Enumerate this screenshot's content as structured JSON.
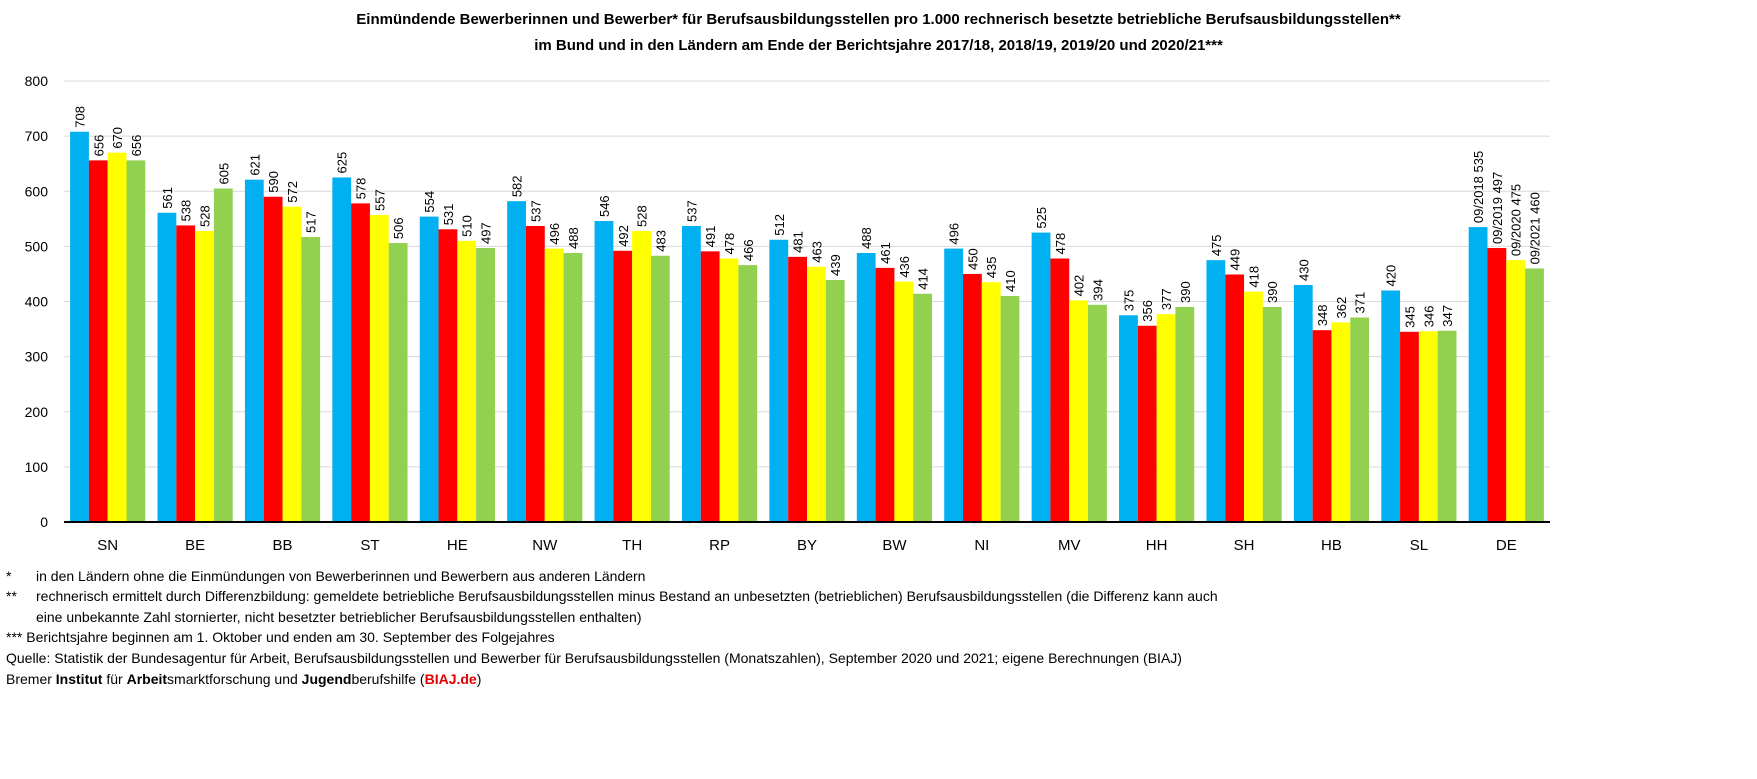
{
  "title_line1": "Einmündende Bewerberinnen und Bewerber* für Berufsausbildungsstellen pro 1.000 rechnerisch besetzte betriebliche Berufsausbildungsstellen**",
  "title_line2": "im Bund und in den Ländern am Ende der Berichtsjahre 2017/18, 2018/19, 2019/20 und 2020/21***",
  "chart_data": {
    "type": "bar",
    "categories": [
      "SN",
      "BE",
      "BB",
      "ST",
      "HE",
      "NW",
      "TH",
      "RP",
      "BY",
      "BW",
      "NI",
      "MV",
      "HH",
      "SH",
      "HB",
      "SL",
      "DE"
    ],
    "series": [
      {
        "name": "09/2018",
        "color": "#00b0f0",
        "values": [
          708,
          561,
          621,
          625,
          554,
          582,
          546,
          537,
          512,
          488,
          496,
          525,
          375,
          475,
          430,
          420,
          535
        ]
      },
      {
        "name": "09/2019",
        "color": "#ff0000",
        "values": [
          656,
          538,
          590,
          578,
          531,
          537,
          492,
          491,
          481,
          461,
          450,
          478,
          356,
          449,
          348,
          345,
          497
        ]
      },
      {
        "name": "09/2020",
        "color": "#ffff00",
        "values": [
          670,
          528,
          572,
          557,
          510,
          496,
          528,
          478,
          463,
          436,
          435,
          402,
          377,
          418,
          362,
          346,
          475
        ]
      },
      {
        "name": "09/2021",
        "color": "#92d050",
        "values": [
          656,
          605,
          517,
          506,
          497,
          488,
          483,
          466,
          439,
          414,
          410,
          394,
          390,
          390,
          371,
          347,
          460
        ]
      }
    ],
    "labelled_category": "DE",
    "yticks": [
      0,
      100,
      200,
      300,
      400,
      500,
      600,
      700,
      800
    ],
    "ylim": [
      0,
      800
    ],
    "grid": true,
    "xlabel": "",
    "ylabel": ""
  },
  "footnotes": {
    "f1_marker": "*",
    "f1_text": "in den Ländern ohne die Einmündungen von Bewerberinnen und Bewerbern aus anderen Ländern",
    "f2_marker": "**",
    "f2_text": "rechnerisch ermittelt durch Differenzbildung: gemeldete betriebliche Berufsausbildungsstellen minus Bestand an unbesetzten (betrieblichen) Berufsausbildungsstellen (die Differenz kann auch",
    "f2_text_cont": "eine unbekannte Zahl stornierter, nicht besetzter  betrieblicher Berufsausbildungsstellen enthalten)",
    "f3_marker": "***",
    "f3_text": "Berichtsjahre beginnen am 1. Oktober und enden am 30. September des Folgejahres",
    "source": "Quelle: Statistik der Bundesagentur für Arbeit, Berufsausbildungsstellen und Bewerber für Berufsausbildungsstellen (Monatszahlen), September 2020 und 2021; eigene Berechnungen (BIAJ)",
    "org": {
      "p1": "Bremer ",
      "p2": "Institut",
      "p3": " für ",
      "p4": "Arbeit",
      "p5": "smarktforschung und ",
      "p6": "Jugend",
      "p7": "berufshilfe (",
      "p8": "BIAJ.de",
      "p9": ")"
    }
  }
}
